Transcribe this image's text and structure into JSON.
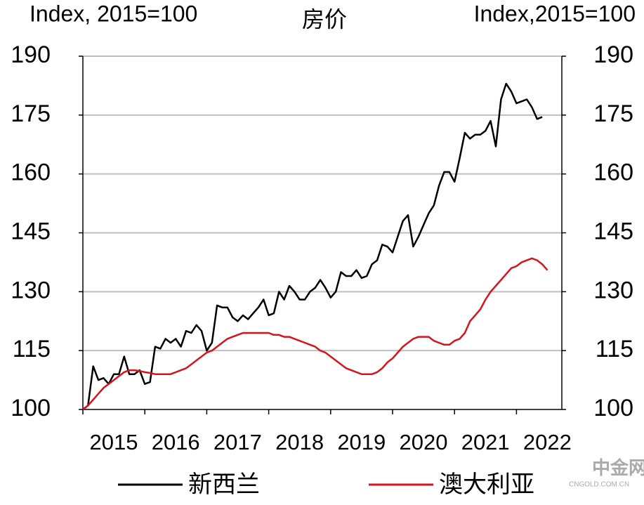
{
  "chart_data": {
    "type": "line",
    "title": "房价",
    "y_label": "Index, 2015=100",
    "y2_label": "Index,2015=100",
    "categories": [
      "2015",
      null,
      null,
      null,
      null,
      null,
      null,
      null,
      null,
      null,
      null,
      null,
      "2016",
      null,
      null,
      null,
      null,
      null,
      null,
      null,
      null,
      null,
      null,
      null,
      "2017",
      null,
      null,
      null,
      null,
      null,
      null,
      null,
      null,
      null,
      null,
      null,
      "2018",
      null,
      null,
      null,
      null,
      null,
      null,
      null,
      null,
      null,
      null,
      null,
      "2019",
      null,
      null,
      null,
      null,
      null,
      null,
      null,
      null,
      null,
      null,
      null,
      "2020",
      null,
      null,
      null,
      null,
      null,
      null,
      null,
      null,
      null,
      null,
      null,
      "2021",
      null,
      null,
      null,
      null,
      null,
      null,
      null,
      null,
      null,
      null,
      null,
      "2022",
      null,
      null,
      null,
      null,
      null,
      null
    ],
    "series": [
      {
        "name": "新西兰",
        "color": "#000000",
        "values": [
          100,
          101,
          111,
          107.5,
          108,
          106.5,
          109,
          109,
          113.5,
          109,
          109,
          110,
          106.5,
          107,
          116,
          115.5,
          118,
          117,
          118,
          116,
          120,
          119.5,
          121.5,
          120,
          115,
          117,
          126.5,
          126,
          126,
          123.5,
          122.5,
          124,
          123,
          124.5,
          126,
          128,
          124,
          124.5,
          130,
          128,
          131.5,
          130,
          128,
          128,
          130,
          131,
          133,
          131,
          128.5,
          130,
          135,
          134,
          134,
          135.5,
          133.5,
          134,
          137,
          138,
          142,
          141.5,
          140,
          144,
          148,
          149.5,
          141.5,
          144,
          147,
          150,
          152,
          157,
          160.5,
          160.5,
          158,
          164,
          170.5,
          169,
          170,
          170,
          171,
          173.5,
          167,
          179,
          183,
          181,
          178,
          178.5,
          179,
          177,
          174,
          174.5,
          null
        ]
      },
      {
        "name": "澳大利亚",
        "color": "#d7141e",
        "values": [
          100,
          101,
          102.5,
          104,
          105.5,
          106.5,
          107.5,
          108.5,
          109.5,
          110,
          110,
          109.8,
          109.5,
          109.3,
          109,
          109,
          109,
          109,
          109.5,
          110,
          110.5,
          111.5,
          112.5,
          113.5,
          114.5,
          115,
          116,
          117,
          118,
          118.5,
          119,
          119.5,
          119.5,
          119.5,
          119.5,
          119.5,
          119.5,
          119,
          119,
          118.5,
          118.5,
          118,
          117.5,
          117,
          116.5,
          116,
          115,
          114.5,
          113.5,
          112.5,
          111.5,
          110.5,
          110,
          109.5,
          109,
          109,
          109,
          109.5,
          110.5,
          112,
          113,
          114.5,
          116,
          117,
          118,
          118.5,
          118.5,
          118.5,
          117.5,
          117,
          116.5,
          116.5,
          117.5,
          118,
          119.5,
          122.5,
          124,
          125.5,
          128,
          130,
          131.5,
          133,
          134.5,
          136,
          136.5,
          137.5,
          138,
          138.5,
          138,
          137,
          135.5
        ]
      }
    ],
    "ylim": [
      100,
      190
    ],
    "yticks": [
      100,
      115,
      130,
      145,
      160,
      175,
      190
    ],
    "y2lim": [
      100,
      190
    ],
    "y2ticks": [
      100,
      115,
      130,
      145,
      160,
      175,
      190
    ],
    "grid": true,
    "legend": "bottom",
    "watermark": {
      "name": "中金网",
      "url": "CNGOLD.COM.CN"
    }
  }
}
